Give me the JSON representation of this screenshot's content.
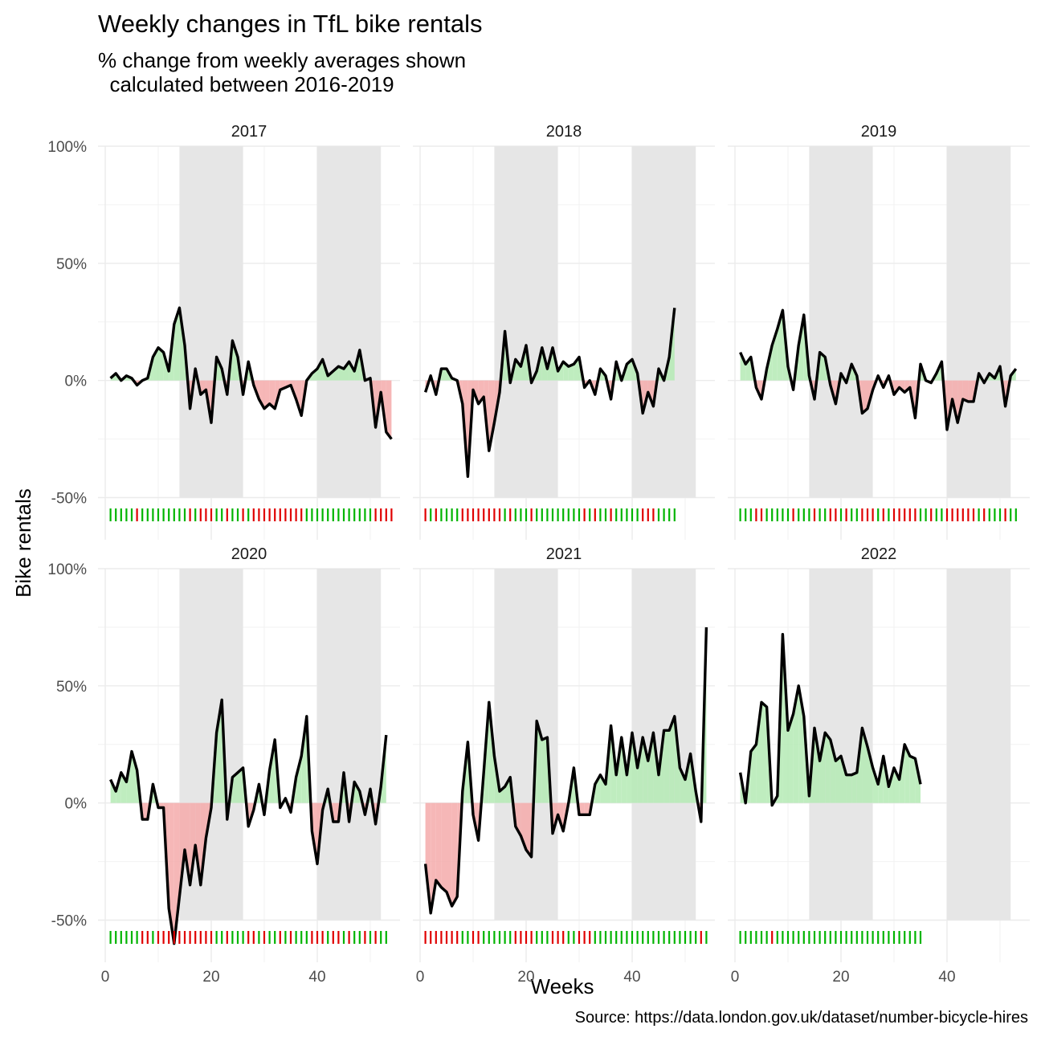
{
  "title": "Weekly changes in TfL bike rentals",
  "subtitle": "% change from weekly averages shown\n  calculated between 2016-2019",
  "caption": "Source: https://data.london.gov.uk/dataset/number-bicycle-hires",
  "colors": {
    "positive_fill": "#b4eab4",
    "negative_fill": "#f5aaaa",
    "line": "#000000",
    "shade": "#e6e6e6",
    "rug_positive": "#00b400",
    "rug_negative": "#e00000"
  },
  "chart_data": {
    "type": "area",
    "xlabel": "Weeks",
    "ylabel": "Bike rentals",
    "xlim": [
      0,
      53
    ],
    "ylim": [
      -68,
      100
    ],
    "x_ticks": [
      0,
      20,
      40
    ],
    "x_tick_labels": [
      "0",
      "20",
      "40"
    ],
    "y_ticks": [
      -50,
      0,
      50,
      100
    ],
    "y_tick_labels": [
      "-50%",
      "0%",
      "50%",
      "100%"
    ],
    "shaded_week_ranges": [
      [
        14,
        26
      ],
      [
        40,
        52
      ]
    ],
    "grid": true,
    "panels": [
      {
        "label": "2017",
        "start_week": 1,
        "values": [
          1,
          3,
          0,
          2,
          1,
          -2,
          0,
          1,
          10,
          14,
          12,
          4,
          24,
          31,
          15,
          -12,
          5,
          -6,
          -4,
          -18,
          10,
          5,
          -6,
          17,
          10,
          -6,
          8,
          -2,
          -8,
          -12,
          -10,
          -12,
          -4,
          -3,
          -2,
          -8,
          -15,
          0,
          3,
          5,
          9,
          2,
          4,
          6,
          5,
          8,
          4,
          13,
          0,
          1,
          -20,
          -5,
          -22,
          -25
        ]
      },
      {
        "label": "2018",
        "start_week": 1,
        "values": [
          -5,
          2,
          -6,
          5,
          5,
          1,
          0,
          -10,
          -41,
          -4,
          -10,
          -7,
          -30,
          -18,
          -5,
          21,
          -1,
          9,
          6,
          15,
          -1,
          4,
          14,
          5,
          14,
          4,
          8,
          6,
          7,
          10,
          -3,
          0,
          -6,
          5,
          2,
          -8,
          8,
          0,
          7,
          9,
          3,
          -14,
          -5,
          -11,
          5,
          0,
          10,
          31
        ]
      },
      {
        "label": "2019",
        "start_week": 1,
        "values": [
          12,
          7,
          10,
          -3,
          -8,
          5,
          15,
          22,
          30,
          6,
          -4,
          15,
          28,
          2,
          -8,
          12,
          10,
          -2,
          -10,
          3,
          -1,
          7,
          2,
          -14,
          -12,
          -4,
          2,
          -3,
          2,
          -6,
          -3,
          -5,
          -3,
          -16,
          7,
          0,
          -1,
          3,
          8,
          -21,
          -8,
          -18,
          -8,
          -9,
          -9,
          3,
          -1,
          3,
          1,
          6,
          -11,
          2,
          5
        ]
      },
      {
        "label": "2020",
        "start_week": 1,
        "values": [
          10,
          5,
          13,
          9,
          22,
          14,
          -7,
          -7,
          8,
          -2,
          -2,
          -45,
          -60,
          -40,
          -20,
          -35,
          -18,
          -35,
          -15,
          -2,
          30,
          44,
          -7,
          11,
          13,
          15,
          -10,
          -3,
          8,
          -5,
          14,
          27,
          -2,
          2,
          -4,
          11,
          20,
          37,
          -12,
          -26,
          -3,
          6,
          -8,
          -8,
          13,
          -8,
          9,
          5,
          -5,
          6,
          -9,
          7,
          29
        ]
      },
      {
        "label": "2021",
        "start_week": 1,
        "values": [
          -26,
          -47,
          -33,
          -36,
          -38,
          -44,
          -40,
          5,
          26,
          -5,
          -16,
          13,
          43,
          20,
          5,
          7,
          11,
          -10,
          -14,
          -20,
          -23,
          35,
          27,
          28,
          -13,
          -5,
          -12,
          0,
          15,
          -5,
          -5,
          -5,
          8,
          12,
          8,
          33,
          12,
          28,
          12,
          30,
          15,
          28,
          18,
          30,
          12,
          31,
          31,
          37,
          15,
          10,
          21,
          5,
          -8,
          75
        ]
      },
      {
        "label": "2022",
        "start_week": 1,
        "values": [
          13,
          0,
          22,
          25,
          43,
          41,
          -1,
          3,
          72,
          31,
          38,
          50,
          37,
          3,
          32,
          18,
          30,
          27,
          18,
          20,
          12,
          12,
          13,
          32,
          24,
          15,
          8,
          20,
          7,
          15,
          10,
          25,
          20,
          19,
          8
        ]
      }
    ]
  }
}
